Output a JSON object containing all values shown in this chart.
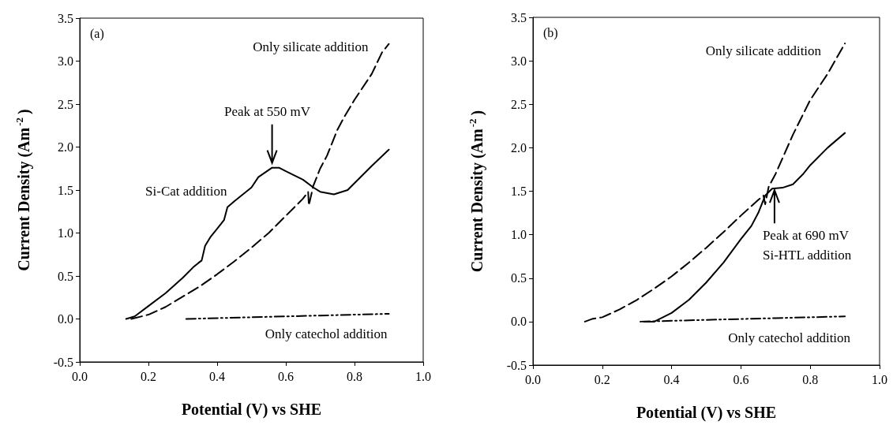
{
  "chart_data": [
    {
      "type": "line",
      "title": "(a)",
      "xlabel": "Potential (V) vs SHE",
      "ylabel": "Current Density (Am$^{-2}$)",
      "xlim": [
        0,
        1
      ],
      "xticks": [
        {
          "value": 0,
          "label": "0.0"
        },
        {
          "value": 0.2,
          "label": "0.2"
        },
        {
          "value": 0.4,
          "label": "0.4"
        },
        {
          "value": 0.6,
          "label": "0.6"
        },
        {
          "value": 0.8,
          "label": "0.8"
        },
        {
          "value": 1,
          "label": "1.0"
        }
      ],
      "ylim": [
        -0.5,
        3.5
      ],
      "yticks": [
        {
          "value": -0.5,
          "label": "-0.5"
        },
        {
          "value": 0,
          "label": "0.0"
        },
        {
          "value": 0.5,
          "label": "0.5"
        },
        {
          "value": 1,
          "label": "1.0"
        },
        {
          "value": 1.5,
          "label": "1.5"
        },
        {
          "value": 2,
          "label": "2.0"
        },
        {
          "value": 2.5,
          "label": "2.5"
        },
        {
          "value": 3,
          "label": "3.0"
        },
        {
          "value": 3.5,
          "label": "3.5"
        }
      ],
      "grid": false,
      "marker": "none",
      "series": [
        {
          "color": "#000000",
          "line_style": "dashed",
          "x": [
            0.15,
            0.2,
            0.25,
            0.3,
            0.35,
            0.4,
            0.45,
            0.5,
            0.55,
            0.6,
            0.65,
            0.665,
            0.667,
            0.68,
            0.7,
            0.72,
            0.75,
            0.77,
            0.8,
            0.85,
            0.88,
            0.9
          ],
          "values": [
            0,
            0.05,
            0.14,
            0.26,
            0.38,
            0.52,
            0.67,
            0.83,
            1.0,
            1.2,
            1.4,
            1.48,
            1.32,
            1.55,
            1.75,
            1.9,
            2.2,
            2.35,
            2.55,
            2.85,
            3.1,
            3.2
          ]
        },
        {
          "color": "#000000",
          "line_style": "solid",
          "x": [
            0.135,
            0.16,
            0.2,
            0.25,
            0.3,
            0.33,
            0.345,
            0.355,
            0.365,
            0.38,
            0.4,
            0.42,
            0.43,
            0.45,
            0.5,
            0.52,
            0.56,
            0.58,
            0.6,
            0.65,
            0.68,
            0.7,
            0.74,
            0.78,
            0.8,
            0.85,
            0.9
          ],
          "values": [
            0,
            0.03,
            0.15,
            0.3,
            0.48,
            0.6,
            0.65,
            0.68,
            0.85,
            0.95,
            1.05,
            1.15,
            1.3,
            1.37,
            1.53,
            1.65,
            1.76,
            1.76,
            1.72,
            1.62,
            1.53,
            1.48,
            1.45,
            1.5,
            1.58,
            1.78,
            1.97
          ]
        },
        {
          "color": "#000000",
          "line_style": "dashdot",
          "x": [
            0.31,
            0.5,
            0.7,
            0.9
          ],
          "values": [
            0,
            0.02,
            0.04,
            0.06
          ]
        }
      ],
      "annotations": [
        {
          "text": "Only silicate addition",
          "x": 0.9,
          "y": 3.2
        },
        {
          "text": "Peak at 550 mV",
          "x": 0.56,
          "y": 1.76
        },
        {
          "text": "Si-Cat addition",
          "x": 0.5,
          "y": 1.53
        },
        {
          "text": "Only catechol addition",
          "x": 0.9,
          "y": 0.06
        }
      ]
    },
    {
      "type": "line",
      "title": "(b)",
      "xlabel": "Potential (V) vs SHE",
      "ylabel": "Current Density (Am$^{-2}$)",
      "xlim": [
        0,
        1
      ],
      "xticks": [
        {
          "value": 0,
          "label": "0.0"
        },
        {
          "value": 0.2,
          "label": "0.2"
        },
        {
          "value": 0.4,
          "label": "0.4"
        },
        {
          "value": 0.6,
          "label": "0.6"
        },
        {
          "value": 0.8,
          "label": "0.8"
        },
        {
          "value": 1,
          "label": "1.0"
        }
      ],
      "ylim": [
        -0.5,
        3.5
      ],
      "yticks": [
        {
          "value": -0.5,
          "label": "-0.5"
        },
        {
          "value": 0,
          "label": "0.0"
        },
        {
          "value": 0.5,
          "label": "0.5"
        },
        {
          "value": 1,
          "label": "1.0"
        },
        {
          "value": 1.5,
          "label": "1.5"
        },
        {
          "value": 2,
          "label": "2.0"
        },
        {
          "value": 2.5,
          "label": "2.5"
        },
        {
          "value": 3,
          "label": "3.0"
        },
        {
          "value": 3.5,
          "label": "3.5"
        }
      ],
      "grid": false,
      "marker": "none",
      "series": [
        {
          "color": "#000000",
          "line_style": "dashed",
          "x": [
            0.15,
            0.17,
            0.2,
            0.25,
            0.3,
            0.35,
            0.4,
            0.45,
            0.5,
            0.55,
            0.6,
            0.65,
            0.665,
            0.67,
            0.68,
            0.7,
            0.75,
            0.8,
            0.85,
            0.9
          ],
          "values": [
            0,
            0.03,
            0.05,
            0.14,
            0.25,
            0.38,
            0.52,
            0.68,
            0.85,
            1.03,
            1.22,
            1.4,
            1.45,
            1.35,
            1.55,
            1.7,
            2.15,
            2.55,
            2.85,
            3.2
          ]
        },
        {
          "color": "#000000",
          "line_style": "solid",
          "x": [
            0.32,
            0.35,
            0.4,
            0.45,
            0.5,
            0.55,
            0.6,
            0.63,
            0.65,
            0.67,
            0.69,
            0.72,
            0.75,
            0.78,
            0.8,
            0.85,
            0.9
          ],
          "values": [
            0,
            0,
            0.1,
            0.25,
            0.45,
            0.68,
            0.95,
            1.1,
            1.25,
            1.45,
            1.53,
            1.54,
            1.58,
            1.7,
            1.8,
            2.0,
            2.17
          ]
        },
        {
          "color": "#000000",
          "line_style": "dashdot",
          "x": [
            0.31,
            0.5,
            0.7,
            0.9
          ],
          "values": [
            0,
            0.02,
            0.04,
            0.06
          ]
        }
      ],
      "annotations": [
        {
          "text": "Only silicate addition",
          "x": 0.9,
          "y": 3.2
        },
        {
          "text": "Peak at 690 mV",
          "x": 0.69,
          "y": 1.53
        },
        "Si-HTL addition",
        {
          "text": "Only catechol addition",
          "x": 0.9,
          "y": 0.06
        }
      ]
    }
  ]
}
